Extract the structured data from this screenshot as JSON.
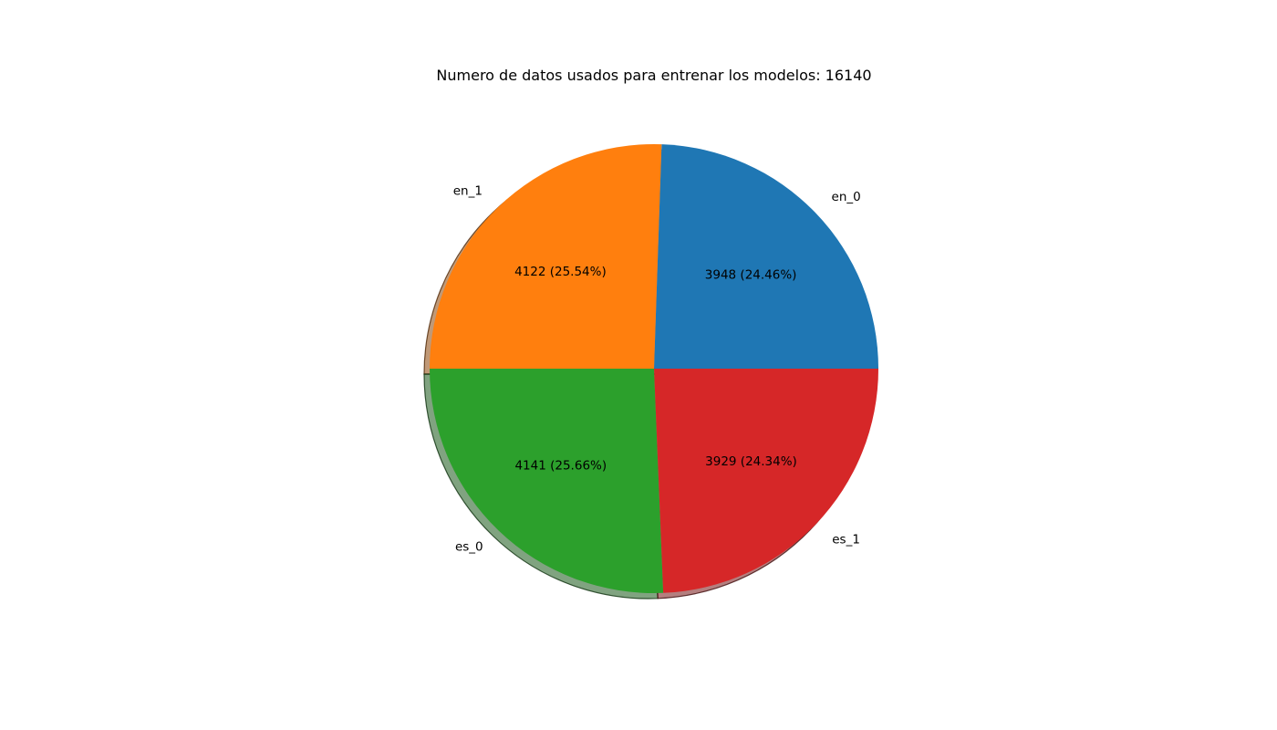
{
  "chart_data": {
    "type": "pie",
    "title": "Numero de datos usados para entrenar los modelos: 16140",
    "slices": [
      {
        "label": "en_0",
        "value": 3948,
        "value_label": "3948 (24.46%)",
        "color": "#1f77b4"
      },
      {
        "label": "en_1",
        "value": 4122,
        "value_label": "4122 (25.54%)",
        "color": "#ff7f0e"
      },
      {
        "label": "es_0",
        "value": 4141,
        "value_label": "4141 (25.66%)",
        "color": "#2ca02c"
      },
      {
        "label": "es_1",
        "value": 3929,
        "value_label": "3929 (24.34%)",
        "color": "#d62728"
      }
    ],
    "start_angle_degrees": 0,
    "direction": "counterclockwise",
    "shadow": true,
    "legend": false,
    "grid": false
  }
}
